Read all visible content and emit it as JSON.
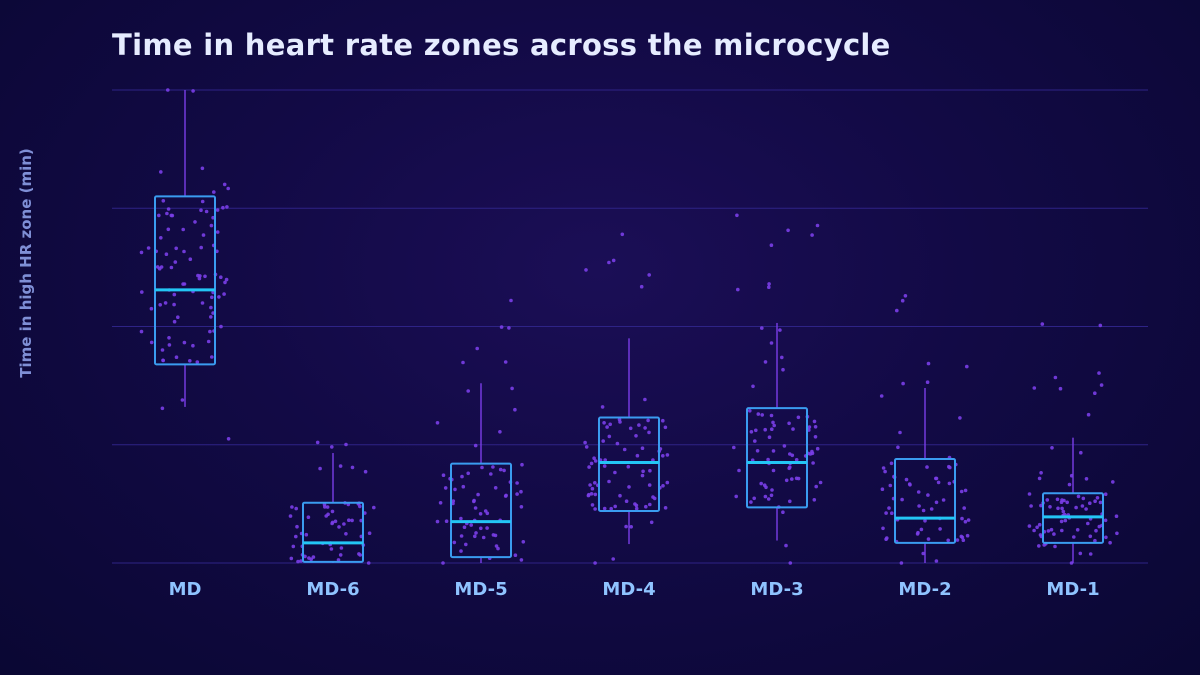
{
  "chart_data": {
    "type": "box",
    "title": "Time in heart rate zones across the microcycle",
    "ylabel": "Time in high HR zone (min)",
    "xlabel": "",
    "categories": [
      "MD",
      "MD-6",
      "MD-5",
      "MD-4",
      "MD-3",
      "MD-2",
      "MD-1"
    ],
    "ylim": [
      0,
      40
    ],
    "grid": true,
    "boxes": [
      {
        "category": "MD",
        "whisker_low": 13.2,
        "q1": 16.8,
        "median": 23.1,
        "q3": 31.0,
        "whisker_high": 40.0
      },
      {
        "category": "MD-6",
        "whisker_low": 0.0,
        "q1": 0.1,
        "median": 1.7,
        "q3": 5.1,
        "whisker_high": 9.3
      },
      {
        "category": "MD-5",
        "whisker_low": 0.0,
        "q1": 0.5,
        "median": 3.5,
        "q3": 8.4,
        "whisker_high": 15.2
      },
      {
        "category": "MD-4",
        "whisker_low": 1.6,
        "q1": 4.4,
        "median": 8.5,
        "q3": 12.3,
        "whisker_high": 19.0
      },
      {
        "category": "MD-3",
        "whisker_low": 1.9,
        "q1": 4.7,
        "median": 8.5,
        "q3": 13.1,
        "whisker_high": 20.3
      },
      {
        "category": "MD-2",
        "whisker_low": 0.0,
        "q1": 1.7,
        "median": 3.8,
        "q3": 8.8,
        "whisker_high": 14.8
      },
      {
        "category": "MD-1",
        "whisker_low": 0.0,
        "q1": 1.7,
        "median": 3.9,
        "q3": 5.9,
        "whisker_high": 10.6
      }
    ],
    "points": [
      {
        "category": "MD",
        "n": 90,
        "min": 10.5,
        "max": 40.0
      },
      {
        "category": "MD-6",
        "n": 60,
        "min": 0.0,
        "max": 10.2
      },
      {
        "category": "MD-5",
        "n": 70,
        "min": 0.0,
        "max": 22.2
      },
      {
        "category": "MD-4",
        "n": 80,
        "min": 0.0,
        "max": 27.8
      },
      {
        "category": "MD-3",
        "n": 80,
        "min": 0.0,
        "max": 29.4
      },
      {
        "category": "MD-2",
        "n": 70,
        "min": 0.0,
        "max": 22.6
      },
      {
        "category": "MD-1",
        "n": 80,
        "min": 0.0,
        "max": 20.2
      }
    ],
    "colors": {
      "box": "#3a9cf0",
      "median": "#23c6f5",
      "whisker": "#7a3ee8",
      "points": "#7a3ee8",
      "grid": "#2e2386"
    }
  }
}
